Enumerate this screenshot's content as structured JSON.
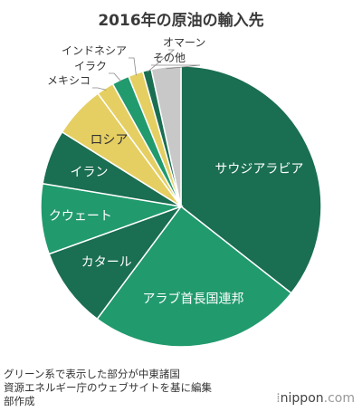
{
  "title": "2016年の原油の輸入先",
  "chart_data": {
    "type": "pie",
    "title": "2016年の原油の輸入先",
    "slices": [
      {
        "label": "サウジアラビア",
        "value": 35.6,
        "color": "#1a6e51"
      },
      {
        "label": "アラブ首長国連邦",
        "value": 24.6,
        "color": "#219a6e"
      },
      {
        "label": "カタール",
        "value": 9.3,
        "color": "#1a6e51"
      },
      {
        "label": "クウェート",
        "value": 8.1,
        "color": "#219a6e"
      },
      {
        "label": "イラン",
        "value": 6.3,
        "color": "#1a6e51"
      },
      {
        "label": "ロシア",
        "value": 6.0,
        "color": "#e5cf62"
      },
      {
        "label": "メキシコ",
        "value": 2.0,
        "color": "#e5cf62"
      },
      {
        "label": "イラク",
        "value": 2.0,
        "color": "#219a6e"
      },
      {
        "label": "インドネシア",
        "value": 1.7,
        "color": "#e5cf62"
      },
      {
        "label": "オマーン",
        "value": 1.0,
        "color": "#1a6e51"
      },
      {
        "label": "その他",
        "value": 3.4,
        "color": "#c8c8c8"
      }
    ]
  },
  "note": {
    "line1": "グリーン系で表示した部分が中東諸国",
    "line2": "資源エネルギー庁のウェブサイトを基に編集",
    "line3": "部作成"
  },
  "brand": {
    "mark": "⁞",
    "name": "nippon",
    "suffix": ".com"
  }
}
